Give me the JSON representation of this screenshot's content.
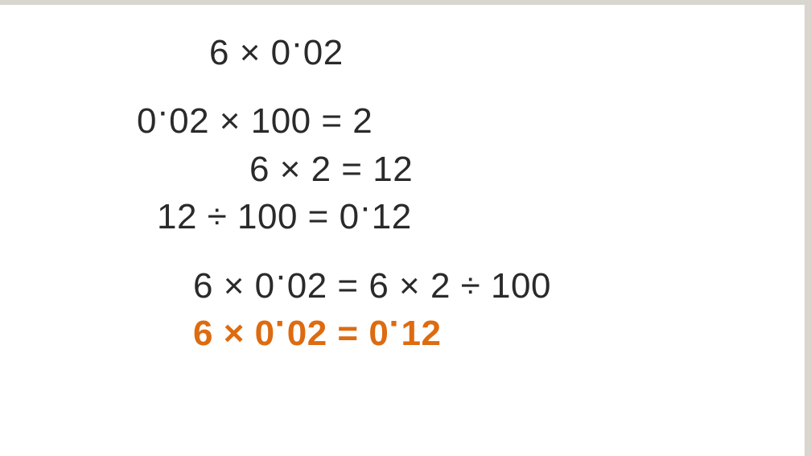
{
  "colors": {
    "page_bg": "#d9d5cf",
    "panel_bg": "#ffffff",
    "text_main": "#2a2a2a",
    "text_highlight": "#dd6b10"
  },
  "typography": {
    "font_family": "Arial, Helvetica, sans-serif",
    "font_size_pt": 33,
    "highlight_weight": "bold"
  },
  "segments": {
    "line1": [
      {
        "t": "6 × 0",
        "c": "text_main"
      },
      {
        "t": "·",
        "c": "text_main",
        "deci": true
      },
      {
        "t": "02",
        "c": "text_main"
      }
    ],
    "line2": [
      {
        "t": "0",
        "c": "text_main"
      },
      {
        "t": "·",
        "c": "text_main",
        "deci": true
      },
      {
        "t": "02 × 100 = 2",
        "c": "text_main"
      }
    ],
    "line3": [
      {
        "t": "6 × 2 = 12",
        "c": "text_main"
      }
    ],
    "line4": [
      {
        "t": "12 ÷ 100 = 0",
        "c": "text_main"
      },
      {
        "t": "·",
        "c": "text_main",
        "deci": true
      },
      {
        "t": "12",
        "c": "text_main"
      }
    ],
    "line5": [
      {
        "t": "6 × 0",
        "c": "text_main"
      },
      {
        "t": "·",
        "c": "text_main",
        "deci": true
      },
      {
        "t": "02 = 6 × 2 ÷ 100",
        "c": "text_main"
      }
    ],
    "line6": [
      {
        "t": "6 × 0",
        "c": "text_highlight"
      },
      {
        "t": "·",
        "c": "text_highlight",
        "deci": true
      },
      {
        "t": "02 = 0",
        "c": "text_highlight"
      },
      {
        "t": "·",
        "c": "text_highlight",
        "deci": true
      },
      {
        "t": "12",
        "c": "text_highlight"
      }
    ]
  }
}
